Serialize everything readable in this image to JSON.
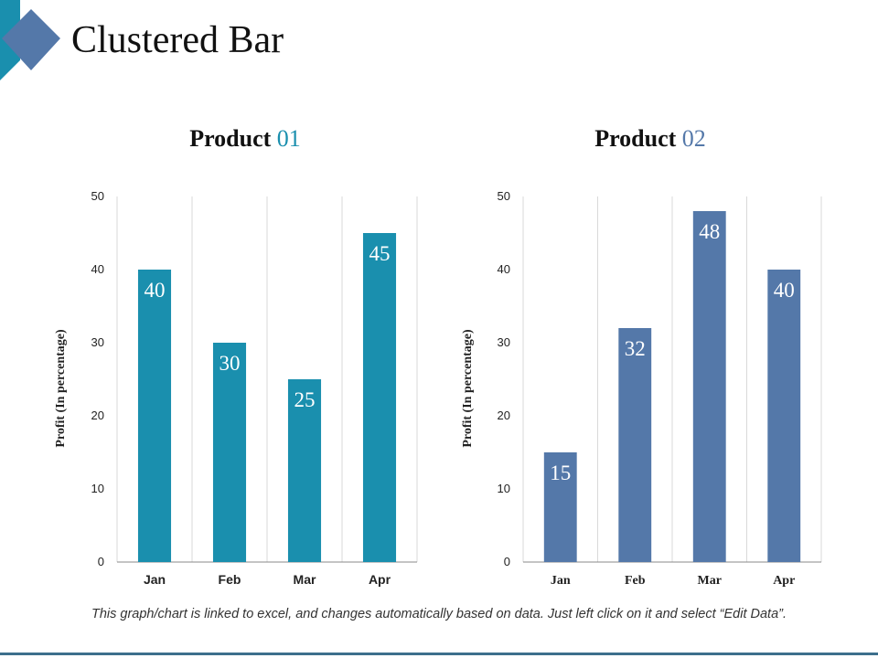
{
  "page": {
    "title": "Clustered Bar"
  },
  "footnote": "This graph/chart is linked to excel, and changes automatically based on data. Just left click on it and select “Edit Data”.",
  "colors": {
    "product1": "#1a8fae",
    "product2": "#5478a9",
    "accent": "#3d6f8c"
  },
  "chart_data": [
    {
      "type": "bar",
      "title_word": "Product",
      "title_number": "01",
      "title": "Product 01",
      "categories": [
        "Jan",
        "Feb",
        "Mar",
        "Apr"
      ],
      "values": [
        40,
        30,
        25,
        45
      ],
      "ylabel": "Profit  (In percentage)",
      "xlabel": "",
      "ylim": [
        0,
        50
      ],
      "yticks": [
        0,
        10,
        20,
        30,
        40,
        50
      ],
      "grid": true,
      "color": "#1a8fae"
    },
    {
      "type": "bar",
      "title_word": "Product",
      "title_number": "02",
      "title": "Product 02",
      "categories": [
        "Jan",
        "Feb",
        "Mar",
        "Apr"
      ],
      "values": [
        15,
        32,
        48,
        40
      ],
      "ylabel": "Profit  (In percentage)",
      "xlabel": "",
      "ylim": [
        0,
        50
      ],
      "yticks": [
        0,
        10,
        20,
        30,
        40,
        50
      ],
      "grid": true,
      "color": "#5478a9"
    }
  ]
}
